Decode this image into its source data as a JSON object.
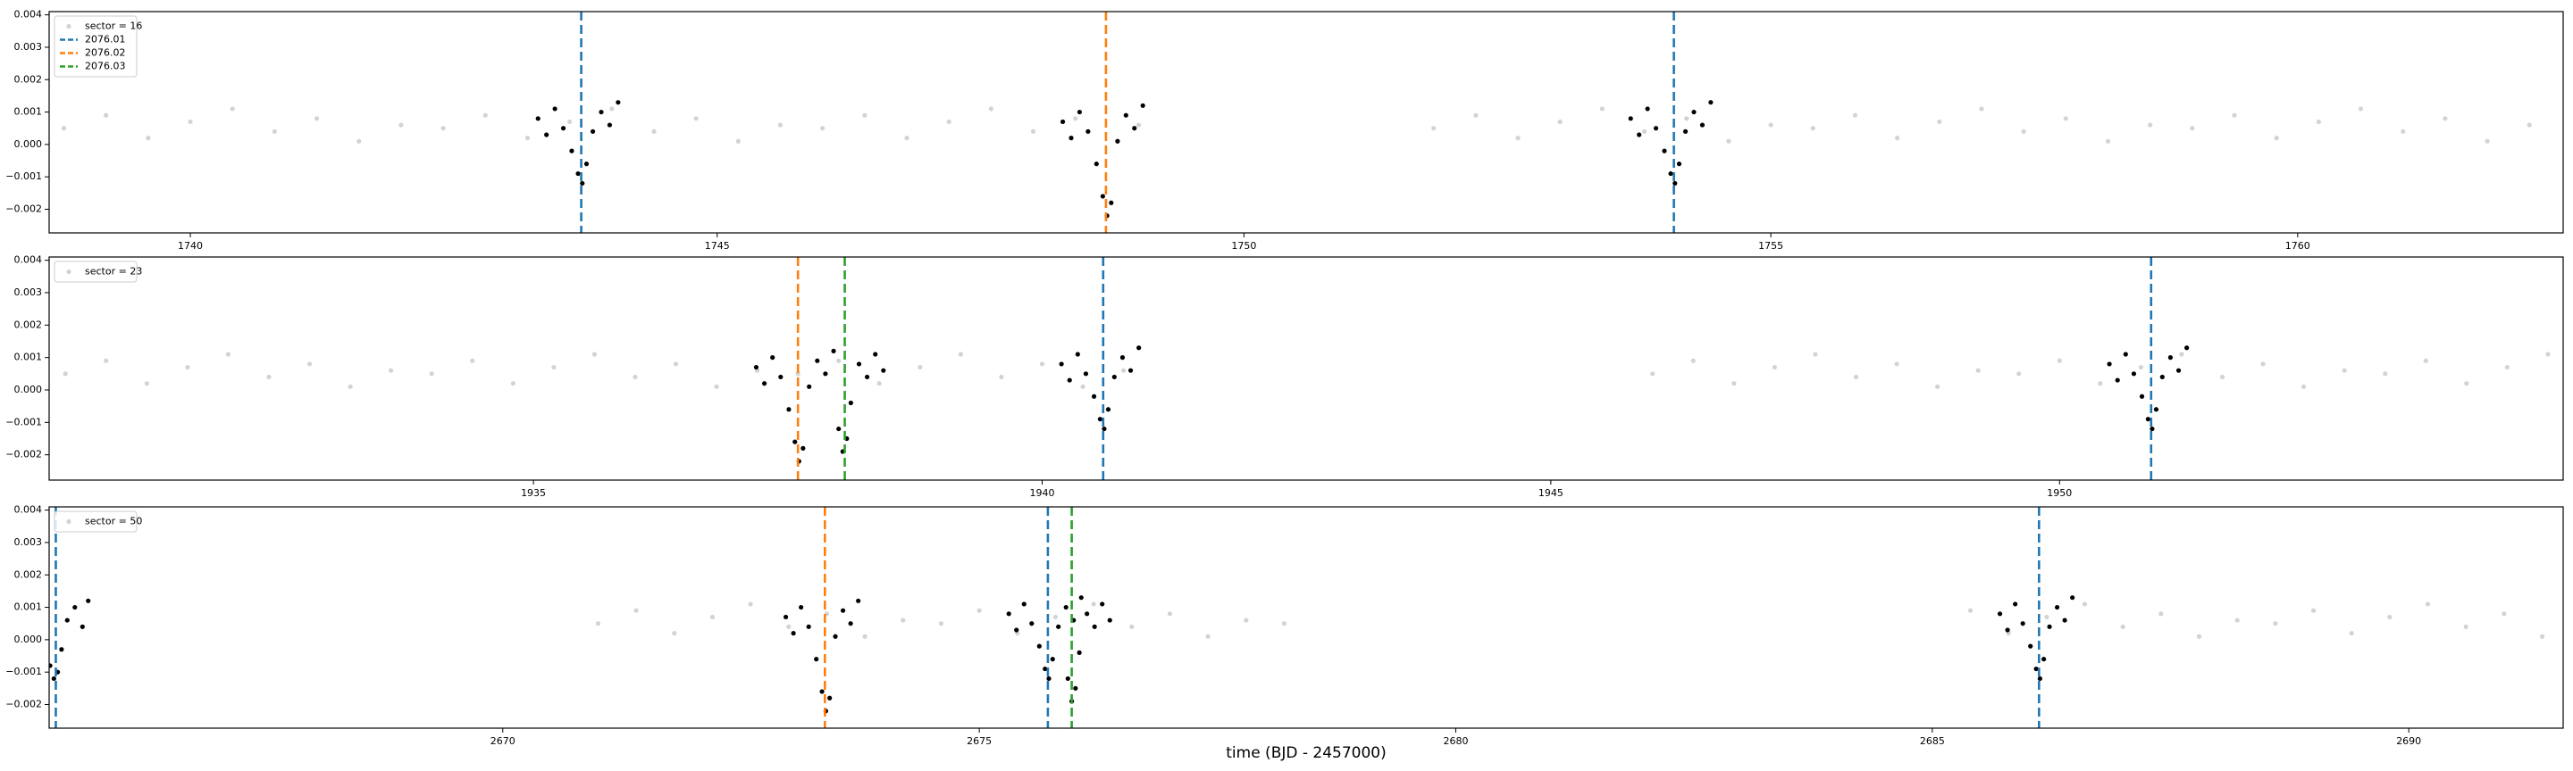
{
  "chart_data": [
    {
      "type": "scatter",
      "legend": "upper left",
      "xlim": [
        1738.66,
        1762.52
      ],
      "ylim": [
        -0.00273,
        0.0041
      ],
      "xticks": [
        1740,
        1745,
        1750,
        1755,
        1760
      ],
      "yticks": [
        {
          "value": -0.002,
          "label": "−0.002"
        },
        {
          "value": -0.001,
          "label": "−0.001"
        },
        {
          "value": 0,
          "label": "0.000"
        },
        0.001,
        0.002,
        0.003,
        0.004
      ],
      "series": [
        {
          "name": "sector = 16",
          "color": "#d3d3d3",
          "x": [
            1738.8,
            1739.2,
            1739.6,
            1740.0,
            1740.4,
            1740.8,
            1741.2,
            1741.6,
            1742.0,
            1742.4,
            1742.8,
            1743.2,
            1743.6,
            1744.0,
            1744.4,
            1744.8,
            1745.2,
            1745.6,
            1746.0,
            1746.4,
            1746.8,
            1747.2,
            1747.6,
            1748.0,
            1748.4,
            1748.8,
            1749.0,
            1751.8,
            1752.2,
            1752.6,
            1753.0,
            1753.4,
            1753.8,
            1754.2,
            1754.6,
            1755.0,
            1755.4,
            1755.8,
            1756.2,
            1756.6,
            1757.0,
            1757.4,
            1757.8,
            1758.2,
            1758.6,
            1759.0,
            1759.4,
            1759.8,
            1760.2,
            1760.6,
            1761.0,
            1761.4,
            1761.8,
            1762.2
          ],
          "y": [
            0.0005,
            0.0009,
            0.0002,
            0.0007,
            0.0011,
            0.0004,
            0.0008,
            0.0001,
            0.0006,
            0.0005,
            0.0009,
            0.0002,
            0.0007,
            0.0011,
            0.0004,
            0.0008,
            0.0001,
            0.0006,
            0.0005,
            0.0009,
            0.0002,
            0.0007,
            0.0011,
            0.0004,
            0.0008,
            0.0001,
            0.0006,
            0.0005,
            0.0009,
            0.0002,
            0.0007,
            0.0011,
            0.0004,
            0.0008,
            0.0001,
            0.0006,
            0.0005,
            0.0009,
            0.0002,
            0.0007,
            0.0011,
            0.0004,
            0.0008,
            0.0001,
            0.0006,
            0.0005,
            0.0009,
            0.0002,
            0.0007,
            0.0011,
            0.0004,
            0.0008,
            0.0001,
            0.0006
          ]
        },
        {
          "color": "#000000",
          "x": [
            1743.3,
            1743.38,
            1743.46,
            1743.54,
            1743.62,
            1743.68,
            1743.72,
            1743.76,
            1743.82,
            1743.9,
            1743.98,
            1744.06,
            1748.28,
            1748.36,
            1748.44,
            1748.52,
            1748.6,
            1748.66,
            1748.7,
            1748.74,
            1748.8,
            1748.88,
            1748.96,
            1749.04,
            1753.67,
            1753.75,
            1753.83,
            1753.91,
            1753.99,
            1754.05,
            1754.09,
            1754.13,
            1754.19,
            1754.27,
            1754.35,
            1754.43
          ],
          "y": [
            0.0008,
            0.0003,
            0.0011,
            0.0005,
            -0.0002,
            -0.0009,
            -0.0012,
            -0.0006,
            0.0004,
            0.001,
            0.0006,
            0.0013,
            0.0007,
            0.0002,
            0.001,
            0.0004,
            -0.0006,
            -0.0016,
            -0.0022,
            -0.0018,
            0.0001,
            0.0009,
            0.0005,
            0.0012,
            0.0008,
            0.0003,
            0.0011,
            0.0005,
            -0.0002,
            -0.0009,
            -0.0012,
            -0.0006,
            0.0004,
            0.001,
            0.0006,
            0.0013
          ]
        }
      ],
      "vlines": [
        {
          "name": "2076.01",
          "color": "#1f77b4",
          "x": [
            1743.71,
            1754.08
          ]
        },
        {
          "name": "2076.02",
          "color": "#ff7f0e",
          "x": [
            1748.69
          ]
        },
        {
          "name": "2076.03",
          "color": "#2ca02c",
          "x": []
        }
      ]
    },
    {
      "type": "scatter",
      "legend": "upper left",
      "xlim": [
        1930.24,
        1954.95
      ],
      "ylim": [
        -0.00278,
        0.0041
      ],
      "xticks": [
        1935,
        1940,
        1945,
        1950
      ],
      "yticks": [
        {
          "value": -0.002,
          "label": "−0.002"
        },
        {
          "value": -0.001,
          "label": "−0.001"
        },
        {
          "value": 0,
          "label": "0.000"
        },
        0.001,
        0.002,
        0.003,
        0.004
      ],
      "series": [
        {
          "name": "sector = 23",
          "color": "#d3d3d3",
          "x": [
            1930.4,
            1930.8,
            1931.2,
            1931.6,
            1932.0,
            1932.4,
            1932.8,
            1933.2,
            1933.6,
            1934.0,
            1934.4,
            1934.8,
            1935.2,
            1935.6,
            1936.0,
            1936.4,
            1936.8,
            1937.2,
            1937.6,
            1938.0,
            1938.4,
            1938.8,
            1939.2,
            1939.6,
            1940.0,
            1940.4,
            1940.8,
            1946.0,
            1946.4,
            1946.8,
            1947.2,
            1947.6,
            1948.0,
            1948.4,
            1948.8,
            1949.2,
            1949.6,
            1950.0,
            1950.4,
            1950.8,
            1951.2,
            1951.6,
            1952.0,
            1952.4,
            1952.8,
            1953.2,
            1953.6,
            1954.0,
            1954.4,
            1954.8
          ],
          "y": [
            0.0005,
            0.0009,
            0.0002,
            0.0007,
            0.0011,
            0.0004,
            0.0008,
            0.0001,
            0.0006,
            0.0005,
            0.0009,
            0.0002,
            0.0007,
            0.0011,
            0.0004,
            0.0008,
            0.0001,
            0.0006,
            0.0005,
            0.0009,
            0.0002,
            0.0007,
            0.0011,
            0.0004,
            0.0008,
            0.0001,
            0.0006,
            0.0005,
            0.0009,
            0.0002,
            0.0007,
            0.0011,
            0.0004,
            0.0008,
            0.0001,
            0.0006,
            0.0005,
            0.0009,
            0.0002,
            0.0007,
            0.0011,
            0.0004,
            0.0008,
            0.0001,
            0.0006,
            0.0005,
            0.0009,
            0.0002,
            0.0007,
            0.0011
          ]
        },
        {
          "color": "#000000",
          "x": [
            1937.19,
            1937.27,
            1937.35,
            1937.43,
            1937.51,
            1937.57,
            1937.61,
            1937.65,
            1937.71,
            1937.79,
            1937.87,
            1937.95,
            1938.0,
            1938.04,
            1938.08,
            1938.12,
            1938.2,
            1938.28,
            1938.36,
            1938.44,
            1940.19,
            1940.27,
            1940.35,
            1940.43,
            1940.51,
            1940.57,
            1940.61,
            1940.65,
            1940.71,
            1940.79,
            1940.87,
            1940.95,
            1950.49,
            1950.57,
            1950.65,
            1950.73,
            1950.81,
            1950.87,
            1950.91,
            1950.95,
            1951.01,
            1951.09,
            1951.17,
            1951.25
          ],
          "y": [
            0.0007,
            0.0002,
            0.001,
            0.0004,
            -0.0006,
            -0.0016,
            -0.0022,
            -0.0018,
            0.0001,
            0.0009,
            0.0005,
            0.0012,
            -0.0012,
            -0.0019,
            -0.0015,
            -0.0004,
            0.0008,
            0.0004,
            0.0011,
            0.0006,
            0.0008,
            0.0003,
            0.0011,
            0.0005,
            -0.0002,
            -0.0009,
            -0.0012,
            -0.0006,
            0.0004,
            0.001,
            0.0006,
            0.0013,
            0.0008,
            0.0003,
            0.0011,
            0.0005,
            -0.0002,
            -0.0009,
            -0.0012,
            -0.0006,
            0.0004,
            0.001,
            0.0006,
            0.0013
          ]
        }
      ],
      "vlines": [
        {
          "color": "#1f77b4",
          "x": [
            1940.6,
            1950.9
          ]
        },
        {
          "color": "#ff7f0e",
          "x": [
            1937.6
          ]
        },
        {
          "color": "#2ca02c",
          "x": [
            1938.06
          ]
        }
      ]
    },
    {
      "type": "scatter",
      "legend": "upper left",
      "xlabel": "time (BJD - 2457000)",
      "xlim": [
        2665.24,
        2691.62
      ],
      "ylim": [
        -0.00273,
        0.0041
      ],
      "xticks": [
        2670,
        2675,
        2680,
        2685,
        2690
      ],
      "yticks": [
        {
          "value": -0.002,
          "label": "−0.002"
        },
        {
          "value": -0.001,
          "label": "−0.001"
        },
        {
          "value": 0,
          "label": "0.000"
        },
        0.001,
        0.002,
        0.003,
        0.004
      ],
      "series": [
        {
          "name": "sector = 50",
          "color": "#d3d3d3",
          "x": [
            2671.0,
            2671.4,
            2671.8,
            2672.2,
            2672.6,
            2673.0,
            2673.4,
            2673.8,
            2674.2,
            2674.6,
            2675.0,
            2675.4,
            2675.8,
            2676.2,
            2676.6,
            2677.0,
            2677.4,
            2677.8,
            2678.2,
            2685.4,
            2685.8,
            2686.2,
            2686.6,
            2687.0,
            2687.4,
            2687.8,
            2688.2,
            2688.6,
            2689.0,
            2689.4,
            2689.8,
            2690.2,
            2690.6,
            2691.0,
            2691.4
          ],
          "y": [
            0.0005,
            0.0009,
            0.0002,
            0.0007,
            0.0011,
            0.0004,
            0.0008,
            0.0001,
            0.0006,
            0.0005,
            0.0009,
            0.0002,
            0.0007,
            0.0011,
            0.0004,
            0.0008,
            0.0001,
            0.0006,
            0.0005,
            0.0009,
            0.0002,
            0.0007,
            0.0011,
            0.0004,
            0.0008,
            0.0001,
            0.0006,
            0.0005,
            0.0009,
            0.0002,
            0.0007,
            0.0011,
            0.0004,
            0.0008,
            0.0001
          ]
        },
        {
          "color": "#000000",
          "x": [
            2665.25,
            2665.29,
            2665.33,
            2665.37,
            2665.43,
            2665.51,
            2665.59,
            2665.65,
            2672.97,
            2673.05,
            2673.13,
            2673.21,
            2673.29,
            2673.35,
            2673.39,
            2673.43,
            2673.49,
            2673.57,
            2673.65,
            2673.73,
            2675.31,
            2675.39,
            2675.47,
            2675.55,
            2675.63,
            2675.69,
            2675.73,
            2675.77,
            2675.83,
            2675.91,
            2675.99,
            2676.07,
            2675.93,
            2675.97,
            2676.01,
            2676.05,
            2676.13,
            2676.21,
            2676.29,
            2676.37,
            2685.71,
            2685.79,
            2685.87,
            2685.95,
            2686.03,
            2686.09,
            2686.13,
            2686.17,
            2686.23,
            2686.31,
            2686.39,
            2686.47
          ],
          "y": [
            -0.0008,
            -0.0012,
            -0.001,
            -0.0003,
            0.0006,
            0.001,
            0.0004,
            0.0012,
            0.0007,
            0.0002,
            0.001,
            0.0004,
            -0.0006,
            -0.0016,
            -0.0022,
            -0.0018,
            0.0001,
            0.0009,
            0.0005,
            0.0012,
            0.0008,
            0.0003,
            0.0011,
            0.0005,
            -0.0002,
            -0.0009,
            -0.0012,
            -0.0006,
            0.0004,
            0.001,
            0.0006,
            0.0013,
            -0.0012,
            -0.0019,
            -0.0015,
            -0.0004,
            0.0008,
            0.0004,
            0.0011,
            0.0006,
            0.0008,
            0.0003,
            0.0011,
            0.0005,
            -0.0002,
            -0.0009,
            -0.0012,
            -0.0006,
            0.0004,
            0.001,
            0.0006,
            0.0013
          ]
        }
      ],
      "vlines": [
        {
          "color": "#1f77b4",
          "x": [
            2665.31,
            2675.72,
            2686.12
          ]
        },
        {
          "color": "#ff7f0e",
          "x": [
            2673.38
          ]
        },
        {
          "color": "#2ca02c",
          "x": [
            2675.97
          ]
        }
      ]
    }
  ]
}
